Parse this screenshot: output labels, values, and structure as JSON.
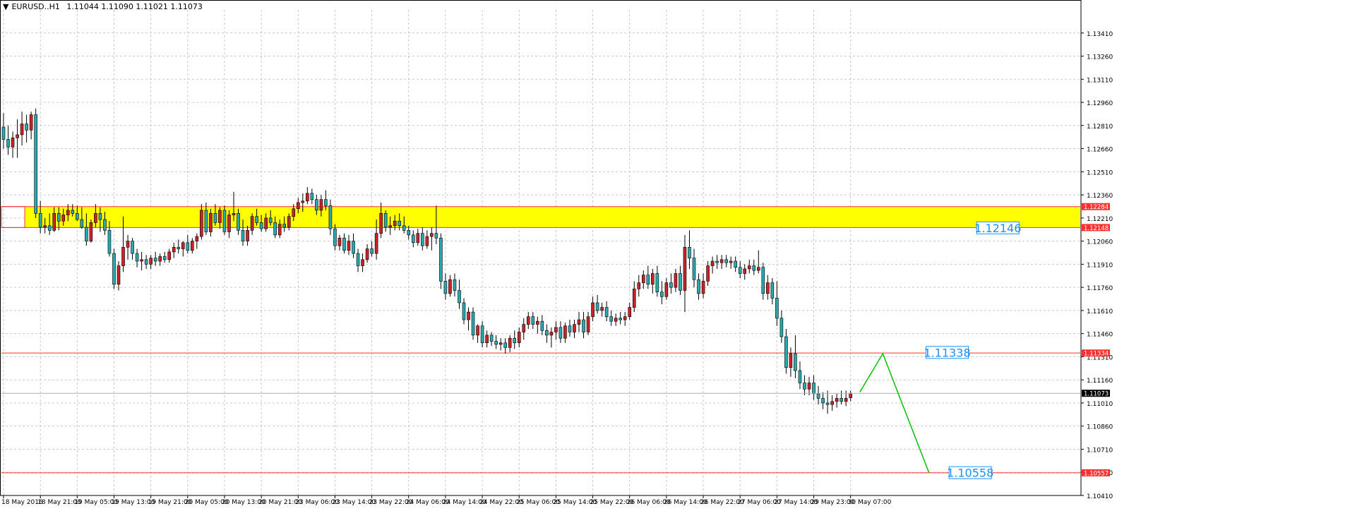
{
  "header": {
    "symbol": "EURUSD..H1",
    "ohlc": "1.11044 1.11090 1.11021 1.11073"
  },
  "colors": {
    "background": "#ffffff",
    "grid": "#c8c8c8",
    "bull": "#c8232b",
    "bear": "#2aa8b0",
    "wick": "#000000",
    "zone": "#ffff00",
    "level_line": "#ff3030",
    "projection": "#00c000",
    "annotation": "#1e90ff",
    "current_price_bg": "#000000"
  },
  "chart_data": {
    "type": "candlestick",
    "title": "",
    "xlabel": "",
    "ylabel": "",
    "grid": true,
    "ylim": [
      1.1041,
      1.1356
    ],
    "y_ticks": [
      "1.13410",
      "1.13260",
      "1.13110",
      "1.12960",
      "1.12810",
      "1.12660",
      "1.12510",
      "1.12360",
      "1.12210",
      "1.12060",
      "1.11910",
      "1.11760",
      "1.11610",
      "1.11460",
      "1.11310",
      "1.11160",
      "1.11010",
      "1.10860",
      "1.10710",
      "1.10560",
      "1.10410"
    ],
    "x_ticks": [
      "18 May 2016",
      "18 May 21:00",
      "19 May 05:00",
      "19 May 13:00",
      "19 May 21:00",
      "20 May 05:00",
      "20 May 13:00",
      "20 May 21:00",
      "23 May 06:00",
      "23 May 14:00",
      "23 May 22:00",
      "24 May 06:00",
      "24 May 14:00",
      "24 May 22:00",
      "25 May 06:00",
      "25 May 14:00",
      "25 May 22:00",
      "26 May 06:00",
      "26 May 14:00",
      "26 May 22:00",
      "27 May 06:00",
      "27 May 14:00",
      "29 May 23:00",
      "30 May 07:00"
    ],
    "x_tick_step_bars": 8,
    "current_price": "1.11073",
    "levels": [
      {
        "price": 1.12284,
        "label": "1.12284",
        "start_bar": 4
      },
      {
        "price": 1.12148,
        "label": "1.12148",
        "start_bar": 4
      },
      {
        "price": 1.11334,
        "label": "1.11334",
        "start_bar": 0
      },
      {
        "price": 1.10557,
        "label": "1.10557",
        "start_bar": 0
      }
    ],
    "zone": {
      "top": 1.12284,
      "bottom": 1.12148,
      "start_bar": 4
    },
    "annotations": [
      {
        "text": "1.12146",
        "price": 1.12146,
        "bar": 216
      },
      {
        "text": "1.11338",
        "price": 1.11338,
        "bar": 205
      },
      {
        "text": "1.10558",
        "price": 1.10558,
        "bar": 210
      }
    ],
    "projection": [
      {
        "bar": 186,
        "price": 1.1108
      },
      {
        "bar": 191,
        "price": 1.1133
      },
      {
        "bar": 201,
        "price": 1.1056
      }
    ],
    "candles": [
      [
        1.128,
        1.1289,
        1.1266,
        1.1272
      ],
      [
        1.1272,
        1.1281,
        1.1262,
        1.1267
      ],
      [
        1.1267,
        1.1277,
        1.126,
        1.1273
      ],
      [
        1.1273,
        1.1285,
        1.126,
        1.1275
      ],
      [
        1.1275,
        1.129,
        1.1268,
        1.1282
      ],
      [
        1.1282,
        1.1288,
        1.127,
        1.1278
      ],
      [
        1.1278,
        1.129,
        1.1272,
        1.1288
      ],
      [
        1.1288,
        1.1292,
        1.1221,
        1.1224
      ],
      [
        1.1224,
        1.1232,
        1.1211,
        1.1215
      ],
      [
        1.1215,
        1.1221,
        1.1211,
        1.1216
      ],
      [
        1.1216,
        1.1224,
        1.121,
        1.1213
      ],
      [
        1.1213,
        1.1228,
        1.1212,
        1.1224
      ],
      [
        1.1224,
        1.1228,
        1.1213,
        1.1219
      ],
      [
        1.1219,
        1.1227,
        1.1216,
        1.1223
      ],
      [
        1.1223,
        1.123,
        1.1219,
        1.1226
      ],
      [
        1.1226,
        1.123,
        1.1222,
        1.1224
      ],
      [
        1.1224,
        1.1229,
        1.1219,
        1.122
      ],
      [
        1.122,
        1.1228,
        1.1214,
        1.1215
      ],
      [
        1.1215,
        1.1224,
        1.1203,
        1.1206
      ],
      [
        1.1206,
        1.122,
        1.1205,
        1.1218
      ],
      [
        1.1218,
        1.123,
        1.1215,
        1.1224
      ],
      [
        1.1224,
        1.1228,
        1.1212,
        1.122
      ],
      [
        1.122,
        1.1225,
        1.121,
        1.1213
      ],
      [
        1.1213,
        1.1219,
        1.1196,
        1.1198
      ],
      [
        1.1198,
        1.1201,
        1.1175,
        1.1178
      ],
      [
        1.1178,
        1.1193,
        1.1174,
        1.119
      ],
      [
        1.119,
        1.1222,
        1.1186,
        1.1202
      ],
      [
        1.1202,
        1.121,
        1.1194,
        1.1206
      ],
      [
        1.1206,
        1.1208,
        1.1194,
        1.1198
      ],
      [
        1.1198,
        1.1201,
        1.1189,
        1.1193
      ],
      [
        1.1193,
        1.1199,
        1.1187,
        1.1194
      ],
      [
        1.1194,
        1.1197,
        1.1188,
        1.1191
      ],
      [
        1.1191,
        1.1197,
        1.1188,
        1.1195
      ],
      [
        1.1195,
        1.1199,
        1.119,
        1.1193
      ],
      [
        1.1193,
        1.1198,
        1.119,
        1.1196
      ],
      [
        1.1196,
        1.1199,
        1.1192,
        1.1194
      ],
      [
        1.1194,
        1.1201,
        1.1192,
        1.1199
      ],
      [
        1.1199,
        1.1205,
        1.1195,
        1.1202
      ],
      [
        1.1202,
        1.1207,
        1.1198,
        1.1201
      ],
      [
        1.1201,
        1.1206,
        1.1196,
        1.1205
      ],
      [
        1.1205,
        1.121,
        1.1198,
        1.12
      ],
      [
        1.12,
        1.1208,
        1.1198,
        1.1206
      ],
      [
        1.1206,
        1.1211,
        1.1201,
        1.1209
      ],
      [
        1.1209,
        1.123,
        1.1207,
        1.1226
      ],
      [
        1.1226,
        1.1231,
        1.121,
        1.1212
      ],
      [
        1.1212,
        1.1227,
        1.1209,
        1.1224
      ],
      [
        1.1224,
        1.123,
        1.1216,
        1.1218
      ],
      [
        1.1218,
        1.1228,
        1.1214,
        1.1226
      ],
      [
        1.1226,
        1.1229,
        1.121,
        1.1212
      ],
      [
        1.1212,
        1.1226,
        1.1208,
        1.1223
      ],
      [
        1.1223,
        1.1238,
        1.1219,
        1.1224
      ],
      [
        1.1224,
        1.1227,
        1.121,
        1.1213
      ],
      [
        1.1213,
        1.122,
        1.1203,
        1.1206
      ],
      [
        1.1206,
        1.1216,
        1.1203,
        1.1213
      ],
      [
        1.1213,
        1.1224,
        1.121,
        1.1222
      ],
      [
        1.1222,
        1.1227,
        1.1216,
        1.1218
      ],
      [
        1.1218,
        1.1223,
        1.1212,
        1.1214
      ],
      [
        1.1214,
        1.1224,
        1.1212,
        1.1221
      ],
      [
        1.1221,
        1.1226,
        1.1216,
        1.1218
      ],
      [
        1.1218,
        1.1222,
        1.1208,
        1.121
      ],
      [
        1.121,
        1.122,
        1.1208,
        1.1217
      ],
      [
        1.1217,
        1.1222,
        1.1212,
        1.1215
      ],
      [
        1.1215,
        1.1224,
        1.1213,
        1.1222
      ],
      [
        1.1222,
        1.123,
        1.1219,
        1.1227
      ],
      [
        1.1227,
        1.1234,
        1.1224,
        1.1231
      ],
      [
        1.1231,
        1.1237,
        1.1225,
        1.1232
      ],
      [
        1.1232,
        1.1241,
        1.123,
        1.1237
      ],
      [
        1.1237,
        1.124,
        1.123,
        1.1233
      ],
      [
        1.1233,
        1.1236,
        1.1223,
        1.1226
      ],
      [
        1.1226,
        1.1236,
        1.1222,
        1.1233
      ],
      [
        1.1233,
        1.1239,
        1.1226,
        1.1229
      ],
      [
        1.1229,
        1.1233,
        1.121,
        1.1214
      ],
      [
        1.1214,
        1.1217,
        1.12,
        1.1203
      ],
      [
        1.1203,
        1.121,
        1.12,
        1.1208
      ],
      [
        1.1208,
        1.1211,
        1.1198,
        1.12
      ],
      [
        1.12,
        1.121,
        1.1197,
        1.1206
      ],
      [
        1.1206,
        1.1211,
        1.1195,
        1.1198
      ],
      [
        1.1198,
        1.1201,
        1.1186,
        1.119
      ],
      [
        1.119,
        1.1198,
        1.1186,
        1.1194
      ],
      [
        1.1194,
        1.1204,
        1.1192,
        1.1201
      ],
      [
        1.1201,
        1.1206,
        1.1196,
        1.1198
      ],
      [
        1.1198,
        1.122,
        1.1194,
        1.1211
      ],
      [
        1.1211,
        1.1231,
        1.1208,
        1.1224
      ],
      [
        1.1224,
        1.1226,
        1.1212,
        1.1215
      ],
      [
        1.1215,
        1.1222,
        1.121,
        1.1216
      ],
      [
        1.1216,
        1.1223,
        1.1213,
        1.1219
      ],
      [
        1.1219,
        1.1224,
        1.1213,
        1.1216
      ],
      [
        1.1216,
        1.1222,
        1.1211,
        1.1213
      ],
      [
        1.1213,
        1.1216,
        1.1207,
        1.121
      ],
      [
        1.121,
        1.1213,
        1.1202,
        1.1205
      ],
      [
        1.1205,
        1.1214,
        1.1203,
        1.1211
      ],
      [
        1.1211,
        1.1215,
        1.12,
        1.1203
      ],
      [
        1.1203,
        1.1213,
        1.1201,
        1.1209
      ],
      [
        1.1209,
        1.1215,
        1.12,
        1.1211
      ],
      [
        1.1211,
        1.1229,
        1.1204,
        1.1208
      ],
      [
        1.1208,
        1.1211,
        1.1175,
        1.118
      ],
      [
        1.118,
        1.1185,
        1.1168,
        1.1172
      ],
      [
        1.1172,
        1.1184,
        1.117,
        1.1181
      ],
      [
        1.1181,
        1.1185,
        1.117,
        1.1174
      ],
      [
        1.1174,
        1.1181,
        1.1162,
        1.1166
      ],
      [
        1.1166,
        1.1169,
        1.1152,
        1.1155
      ],
      [
        1.1155,
        1.1163,
        1.1148,
        1.116
      ],
      [
        1.116,
        1.1163,
        1.1142,
        1.1145
      ],
      [
        1.1145,
        1.1152,
        1.114,
        1.1151
      ],
      [
        1.1151,
        1.1154,
        1.1137,
        1.114
      ],
      [
        1.114,
        1.1148,
        1.1137,
        1.1145
      ],
      [
        1.1145,
        1.1147,
        1.1138,
        1.1141
      ],
      [
        1.1141,
        1.1145,
        1.1136,
        1.1139
      ],
      [
        1.1139,
        1.1143,
        1.1135,
        1.114
      ],
      [
        1.114,
        1.1143,
        1.1133,
        1.1137
      ],
      [
        1.1137,
        1.1145,
        1.1134,
        1.1143
      ],
      [
        1.1143,
        1.1148,
        1.1136,
        1.114
      ],
      [
        1.114,
        1.115,
        1.1137,
        1.1147
      ],
      [
        1.1147,
        1.1156,
        1.1142,
        1.1152
      ],
      [
        1.1152,
        1.116,
        1.1149,
        1.1157
      ],
      [
        1.1157,
        1.116,
        1.1149,
        1.1152
      ],
      [
        1.1152,
        1.1157,
        1.1146,
        1.1154
      ],
      [
        1.1154,
        1.1158,
        1.1145,
        1.1148
      ],
      [
        1.1148,
        1.1152,
        1.114,
        1.1145
      ],
      [
        1.1145,
        1.115,
        1.1137,
        1.1147
      ],
      [
        1.1147,
        1.1154,
        1.1142,
        1.115
      ],
      [
        1.115,
        1.1154,
        1.114,
        1.1143
      ],
      [
        1.1143,
        1.1153,
        1.114,
        1.1151
      ],
      [
        1.1151,
        1.1155,
        1.1144,
        1.1147
      ],
      [
        1.1147,
        1.1155,
        1.1143,
        1.1152
      ],
      [
        1.1152,
        1.116,
        1.1147,
        1.1155
      ],
      [
        1.1155,
        1.116,
        1.1143,
        1.1147
      ],
      [
        1.1147,
        1.116,
        1.1145,
        1.1157
      ],
      [
        1.1157,
        1.117,
        1.1154,
        1.1166
      ],
      [
        1.1166,
        1.1171,
        1.1159,
        1.1161
      ],
      [
        1.1161,
        1.1166,
        1.1157,
        1.1163
      ],
      [
        1.1163,
        1.1167,
        1.1154,
        1.1157
      ],
      [
        1.1157,
        1.1161,
        1.1151,
        1.1154
      ],
      [
        1.1154,
        1.1159,
        1.1151,
        1.1156
      ],
      [
        1.1156,
        1.116,
        1.1152,
        1.1155
      ],
      [
        1.1155,
        1.116,
        1.1151,
        1.1157
      ],
      [
        1.1157,
        1.1166,
        1.1155,
        1.1163
      ],
      [
        1.1163,
        1.118,
        1.116,
        1.1175
      ],
      [
        1.1175,
        1.1184,
        1.117,
        1.1179
      ],
      [
        1.1179,
        1.1187,
        1.1175,
        1.1184
      ],
      [
        1.1184,
        1.119,
        1.1175,
        1.1178
      ],
      [
        1.1178,
        1.1188,
        1.1172,
        1.1185
      ],
      [
        1.1185,
        1.119,
        1.117,
        1.1173
      ],
      [
        1.1173,
        1.118,
        1.1165,
        1.117
      ],
      [
        1.117,
        1.1182,
        1.1168,
        1.1179
      ],
      [
        1.1179,
        1.1185,
        1.1172,
        1.1176
      ],
      [
        1.1176,
        1.1188,
        1.1173,
        1.1185
      ],
      [
        1.1185,
        1.119,
        1.1171,
        1.1174
      ],
      [
        1.1174,
        1.121,
        1.116,
        1.1202
      ],
      [
        1.1202,
        1.1213,
        1.1188,
        1.1195
      ],
      [
        1.1195,
        1.1201,
        1.1176,
        1.1181
      ],
      [
        1.1181,
        1.1185,
        1.1168,
        1.1172
      ],
      [
        1.1172,
        1.1185,
        1.1169,
        1.118
      ],
      [
        1.118,
        1.1193,
        1.1177,
        1.119
      ],
      [
        1.119,
        1.1196,
        1.1185,
        1.1193
      ],
      [
        1.1193,
        1.1197,
        1.1188,
        1.1192
      ],
      [
        1.1192,
        1.1197,
        1.1188,
        1.1194
      ],
      [
        1.1194,
        1.1197,
        1.1189,
        1.1192
      ],
      [
        1.1192,
        1.1196,
        1.1188,
        1.1193
      ],
      [
        1.1193,
        1.1196,
        1.1186,
        1.1189
      ],
      [
        1.1189,
        1.1193,
        1.1182,
        1.1185
      ],
      [
        1.1185,
        1.1191,
        1.1181,
        1.1188
      ],
      [
        1.1188,
        1.1194,
        1.1185,
        1.119
      ],
      [
        1.119,
        1.1194,
        1.1184,
        1.1187
      ],
      [
        1.1187,
        1.12,
        1.1185,
        1.1189
      ],
      [
        1.1189,
        1.1192,
        1.1168,
        1.1172
      ],
      [
        1.1172,
        1.1184,
        1.1168,
        1.1179
      ],
      [
        1.1179,
        1.1182,
        1.1165,
        1.1169
      ],
      [
        1.1169,
        1.118,
        1.1151,
        1.1156
      ],
      [
        1.1156,
        1.1161,
        1.114,
        1.1144
      ],
      [
        1.1144,
        1.1149,
        1.112,
        1.1124
      ],
      [
        1.1124,
        1.1137,
        1.1118,
        1.1133
      ],
      [
        1.1133,
        1.1145,
        1.1117,
        1.1122
      ],
      [
        1.1122,
        1.1128,
        1.111,
        1.1114
      ],
      [
        1.1114,
        1.1119,
        1.1106,
        1.111
      ],
      [
        1.111,
        1.1118,
        1.1106,
        1.1114
      ],
      [
        1.1114,
        1.1119,
        1.1103,
        1.1107
      ],
      [
        1.1107,
        1.1112,
        1.11,
        1.1104
      ],
      [
        1.1104,
        1.1108,
        1.1097,
        1.1101
      ],
      [
        1.1101,
        1.1109,
        1.1094,
        1.11
      ],
      [
        1.11,
        1.1106,
        1.1096,
        1.1102
      ],
      [
        1.1102,
        1.1107,
        1.1098,
        1.1104
      ],
      [
        1.1104,
        1.1109,
        1.11,
        1.1102
      ],
      [
        1.1102,
        1.1109,
        1.1099,
        1.1104
      ],
      [
        1.11044,
        1.1109,
        1.11021,
        1.11073
      ]
    ]
  }
}
